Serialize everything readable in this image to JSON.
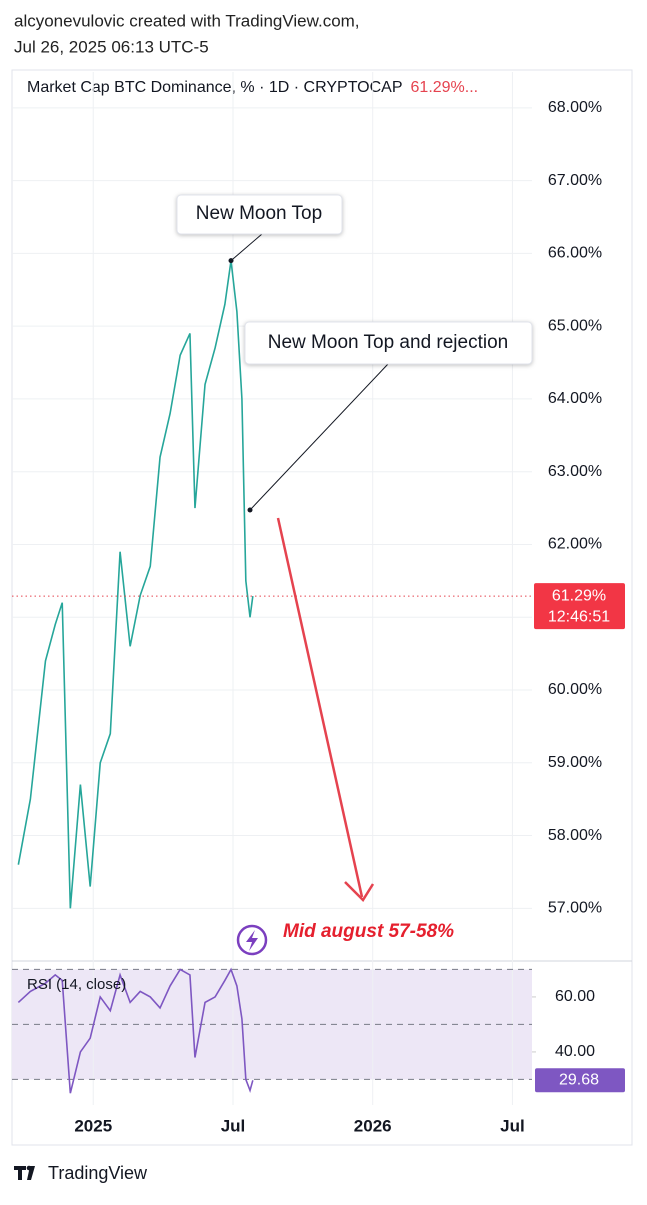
{
  "header": {
    "line1": "alcyonevulovic created with TradingView.com,",
    "line2": "Jul 26, 2025 06:13 UTC-5"
  },
  "footer": {
    "brand": "TradingView"
  },
  "chart_data": [
    {
      "type": "line",
      "title": "Market Cap BTC Dominance, % · 1D · CRYPTOCAP",
      "title_value": "61.29%...",
      "price_label": "61.29%",
      "countdown": "12:46:51",
      "last_price": 61.29,
      "annotations": [
        "New Moon Top",
        "New Moon Top and rejection",
        "Mid august 57-58%"
      ],
      "x": [
        2024.732,
        2024.775,
        2024.829,
        2024.864,
        2024.889,
        2024.918,
        2024.954,
        2024.989,
        2025.025,
        2025.061,
        2025.096,
        2025.132,
        2025.168,
        2025.204,
        2025.239,
        2025.275,
        2025.311,
        2025.346,
        2025.364,
        2025.4,
        2025.436,
        2025.471,
        2025.493,
        2025.514,
        2025.532,
        2025.546,
        2025.561,
        2025.571
      ],
      "series": [
        {
          "name": "BTC Dominance",
          "color": "#26a69a",
          "values": [
            57.6,
            58.5,
            60.4,
            60.9,
            61.2,
            57.0,
            58.7,
            57.3,
            59.0,
            59.4,
            61.9,
            60.6,
            61.3,
            61.7,
            63.2,
            63.8,
            64.6,
            64.9,
            62.5,
            64.2,
            64.7,
            65.3,
            65.9,
            65.2,
            64.0,
            61.5,
            61.0,
            61.29
          ]
        }
      ],
      "xlim": [
        2024.72,
        2026.57
      ],
      "xticks": [
        2025,
        {
          "value": 2025.5,
          "label": "Jul"
        },
        2026,
        {
          "value": 2026.5,
          "label": "Jul"
        }
      ],
      "ylim": [
        56.29,
        68.41
      ],
      "yticks": [
        {
          "value": 57,
          "label": "57.00%"
        },
        {
          "value": 58,
          "label": "58.00%"
        },
        {
          "value": 59,
          "label": "59.00%"
        },
        {
          "value": 60,
          "label": "60.00%"
        },
        {
          "value": 61,
          "label": "61.00%"
        },
        {
          "value": 62,
          "label": "62.00%"
        },
        {
          "value": 63,
          "label": "63.00%"
        },
        {
          "value": 64,
          "label": "64.00%"
        },
        {
          "value": 65,
          "label": "65.00%"
        },
        {
          "value": 66,
          "label": "66.00%"
        },
        {
          "value": 67,
          "label": "67.00%"
        },
        {
          "value": 68,
          "label": "68.00%"
        }
      ],
      "grid": true
    },
    {
      "type": "line",
      "title": "RSI (14, close)",
      "x": [
        2024.732,
        2024.775,
        2024.829,
        2024.864,
        2024.889,
        2024.918,
        2024.954,
        2024.989,
        2025.025,
        2025.061,
        2025.096,
        2025.132,
        2025.168,
        2025.204,
        2025.239,
        2025.275,
        2025.311,
        2025.346,
        2025.364,
        2025.4,
        2025.436,
        2025.471,
        2025.493,
        2025.514,
        2025.532,
        2025.546,
        2025.561,
        2025.571
      ],
      "series": [
        {
          "name": "RSI",
          "color": "#7e57c2",
          "values": [
            58,
            62,
            65,
            68,
            66,
            25,
            40,
            45,
            60,
            55,
            68,
            58,
            62,
            60,
            56,
            64,
            70,
            68,
            38,
            58,
            60,
            66,
            70,
            64,
            52,
            30,
            26,
            29.68
          ]
        }
      ],
      "xlim": [
        2024.72,
        2026.57
      ],
      "ylim": [
        20.7,
        72.7
      ],
      "yticks": [
        {
          "value": 40,
          "label": "40.00"
        },
        {
          "value": 60,
          "label": "60.00"
        }
      ],
      "levels": [
        30,
        50,
        70
      ]
    }
  ]
}
